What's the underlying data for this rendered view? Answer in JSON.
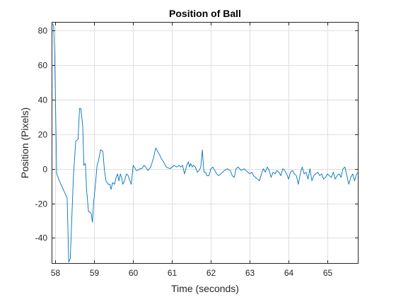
{
  "chart_data": {
    "type": "line",
    "title": "Position of Ball",
    "xlabel": "Time (seconds)",
    "ylabel": "Position (Pixels)",
    "xlim": [
      57.9,
      65.8
    ],
    "ylim": [
      -55,
      85
    ],
    "grid": true,
    "x_ticks": [
      58,
      59,
      60,
      61,
      62,
      63,
      64,
      65
    ],
    "y_ticks": [
      -40,
      -20,
      0,
      20,
      40,
      60,
      80
    ],
    "x_tick_labels": [
      "58",
      "59",
      "60",
      "61",
      "62",
      "63",
      "64",
      "65"
    ],
    "y_tick_labels": [
      "-40",
      "-20",
      "0",
      "20",
      "40",
      "60",
      "80"
    ],
    "line_color": "#0072bd",
    "grid_color": "#dfdfdf",
    "series": [
      {
        "name": "Position of Ball",
        "x": [
          57.92,
          57.95,
          57.98,
          58.03,
          58.1,
          58.2,
          58.3,
          58.34,
          58.38,
          58.46,
          58.52,
          58.58,
          58.62,
          58.65,
          58.7,
          58.73,
          58.77,
          58.8,
          58.85,
          58.88,
          58.92,
          58.95,
          58.98,
          59.02,
          59.07,
          59.1,
          59.16,
          59.22,
          59.26,
          59.3,
          59.33,
          59.36,
          59.4,
          59.43,
          59.47,
          59.52,
          59.56,
          59.6,
          59.63,
          59.67,
          59.7,
          59.73,
          59.76,
          59.8,
          59.83,
          59.87,
          59.9,
          59.95,
          60.0,
          60.03,
          60.08,
          60.12,
          60.17,
          60.22,
          60.28,
          60.32,
          60.38,
          60.45,
          60.52,
          60.58,
          60.63,
          60.68,
          60.72,
          60.78,
          60.85,
          60.95,
          61.05,
          61.12,
          61.18,
          61.22,
          61.27,
          61.32,
          61.38,
          61.42,
          61.45,
          61.48,
          61.52,
          61.55,
          61.6,
          61.65,
          61.7,
          61.74,
          61.78,
          61.82,
          61.86,
          61.9,
          61.95,
          62.0,
          62.05,
          62.1,
          62.15,
          62.2,
          62.25,
          62.3,
          62.35,
          62.42,
          62.5,
          62.55,
          62.6,
          62.65,
          62.7,
          62.78,
          62.85,
          62.9,
          62.95,
          63.0,
          63.05,
          63.1,
          63.15,
          63.2,
          63.25,
          63.3,
          63.35,
          63.4,
          63.45,
          63.5,
          63.55,
          63.6,
          63.65,
          63.7,
          63.75,
          63.8,
          63.85,
          63.9,
          63.95,
          64.0,
          64.05,
          64.1,
          64.15,
          64.2,
          64.25,
          64.3,
          64.35,
          64.4,
          64.45,
          64.5,
          64.55,
          64.6,
          64.65,
          64.7,
          64.75,
          64.8,
          64.85,
          64.9,
          64.95,
          65.0,
          65.05,
          65.1,
          65.15,
          65.2,
          65.25,
          65.3,
          65.35,
          65.4,
          65.45,
          65.5,
          65.55,
          65.6,
          65.65,
          65.7,
          65.75,
          65.8
        ],
        "y": [
          84,
          83,
          65,
          -3,
          -7,
          -12,
          -17,
          -54,
          -52,
          -5,
          16,
          17,
          35,
          35,
          25,
          2,
          3,
          -12,
          -25,
          -25,
          -26,
          -31,
          -20,
          -11,
          2,
          4,
          11,
          10,
          -1,
          -7,
          -8,
          -9,
          -9,
          -12,
          -8,
          -9,
          -5,
          -3,
          -7,
          -3,
          -5,
          -9,
          -8,
          -5,
          -3,
          -4,
          -6,
          -9,
          2,
          1,
          -1,
          -1,
          0,
          0,
          2,
          1,
          -1,
          1,
          6,
          12,
          10,
          8,
          6,
          4,
          1,
          0,
          2,
          1,
          2,
          1,
          2,
          -3,
          2,
          4,
          1,
          3,
          1,
          2,
          1,
          -2,
          -1,
          1,
          11,
          -2,
          -2,
          -4,
          -4,
          0,
          1,
          -1,
          -3,
          -4,
          -3,
          -2,
          -1,
          0,
          -1,
          -4,
          -5,
          0,
          1,
          -1,
          0,
          -1,
          -2,
          -3,
          -2,
          -4,
          -5,
          -6,
          -7,
          -3,
          0,
          -2,
          1,
          -1,
          -5,
          -2,
          -3,
          -1,
          -2,
          -4,
          0,
          -1,
          -3,
          -6,
          -2,
          -1,
          -3,
          -4,
          -9,
          -3,
          1,
          -3,
          -2,
          -6,
          0,
          -7,
          -4,
          -3,
          -2,
          -4,
          -3,
          -6,
          -5,
          -3,
          -4,
          -5,
          -2,
          -6,
          -4,
          -3,
          -5,
          0,
          1,
          -4,
          -9,
          -5,
          -3,
          -7,
          -3,
          -2
        ],
        "color": "#0072bd"
      }
    ]
  }
}
